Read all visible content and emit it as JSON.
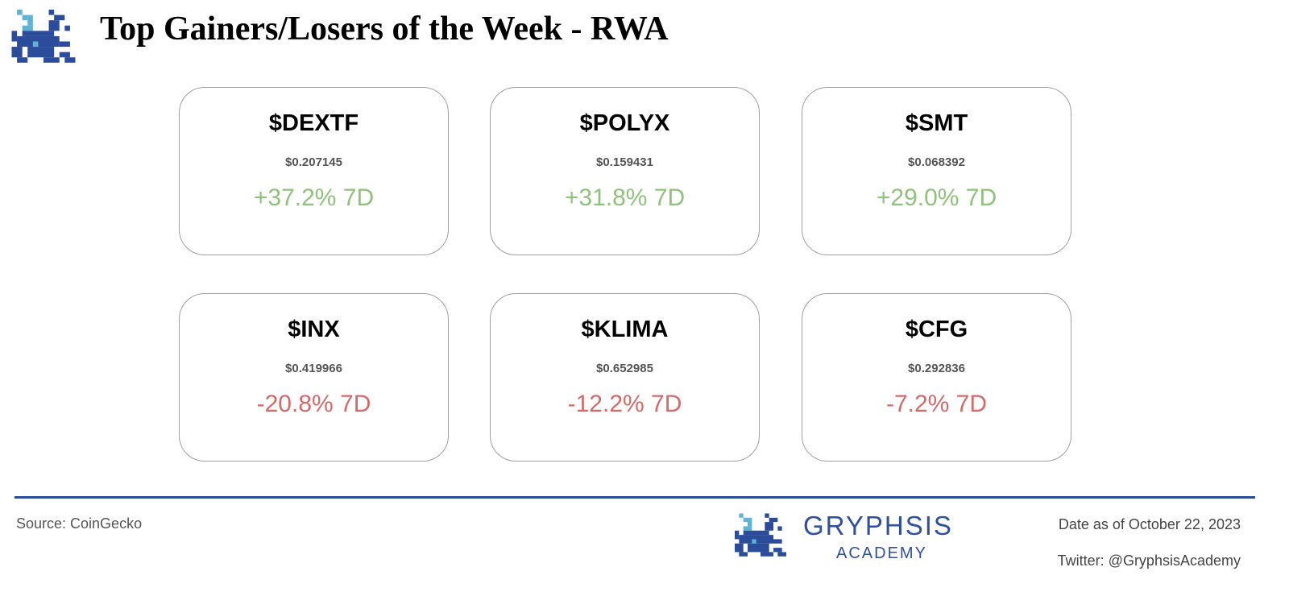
{
  "header": {
    "title": "Top Gainers/Losers of the Week - RWA"
  },
  "cards": [
    {
      "ticker": "$DEXTF",
      "price": "$0.207145",
      "change": "+37.2% 7D",
      "color": "#8fc27c"
    },
    {
      "ticker": "$POLYX",
      "price": "$0.159431",
      "change": "+31.8% 7D",
      "color": "#8fc27c"
    },
    {
      "ticker": "$SMT",
      "price": "$0.068392",
      "change": "+29.0% 7D",
      "color": "#8fc27c"
    },
    {
      "ticker": "$INX",
      "price": "$0.419966",
      "change": "-20.8% 7D",
      "color": "#d46a6a"
    },
    {
      "ticker": "$KLIMA",
      "price": "$0.652985",
      "change": "-12.2% 7D",
      "color": "#d46a6a"
    },
    {
      "ticker": "$CFG",
      "price": "$0.292836",
      "change": "-7.2% 7D",
      "color": "#d46a6a"
    }
  ],
  "footer": {
    "source": "Source: CoinGecko",
    "brand": "GRYPHSIS",
    "brand_sub": "ACADEMY",
    "date": "Date as of October 22, 2023",
    "twitter": "Twitter: @GryphsisAcademy"
  }
}
